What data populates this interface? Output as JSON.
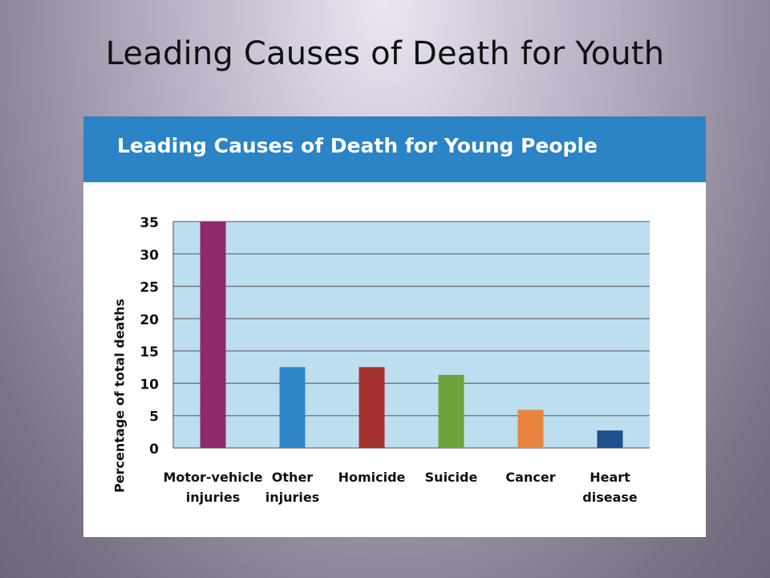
{
  "slide": {
    "title": "Leading Causes of Death for Youth"
  },
  "chart_data": {
    "type": "bar",
    "title": "Leading Causes of Death for Young People",
    "xlabel": "",
    "ylabel": "Percentage of total deaths",
    "categories": [
      [
        "Motor-vehicle",
        "injuries"
      ],
      [
        "Other",
        "injuries"
      ],
      [
        "Homicide"
      ],
      [
        "Suicide"
      ],
      [
        "Cancer"
      ],
      [
        "Heart",
        "disease"
      ]
    ],
    "values": [
      35,
      12.5,
      12.5,
      11.3,
      5.9,
      2.7
    ],
    "ylim": [
      0,
      35
    ],
    "yticks": [
      0,
      5,
      10,
      15,
      20,
      25,
      30,
      35
    ],
    "grid": true,
    "colors": {
      "plot_background": "#bcdeef",
      "header": "#2a84c6",
      "gridline": "#6f6f6f",
      "bars": [
        "#8e2a6c",
        "#2e86c8",
        "#a63230",
        "#6ea33c",
        "#e8843e",
        "#1f4f8c"
      ]
    }
  }
}
